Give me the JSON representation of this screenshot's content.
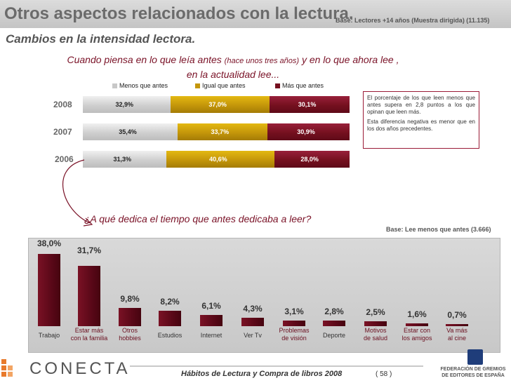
{
  "header": {
    "title": "Otros aspectos relacionados con la lectura.",
    "base_note": "Base: Lectores +14 años (Muestra dirigida) (11.135)"
  },
  "subtitle": "Cambios en la intensidad lectora.",
  "question_1": {
    "part_a": "Cuando piensa en lo que leía antes",
    "part_b": "(hace unos tres años)",
    "part_c": "y en lo que ahora lee ,",
    "part_d": "en la actualidad lee..."
  },
  "note": {
    "paragraph_1": "El porcentaje de los que leen menos que antes supera en 2,8 puntos a los que opinan que leen más.",
    "paragraph_2": "Esta diferencia negativa es menor que en los dos años precedentes."
  },
  "question_2": "¿A qué dedica el tiempo que antes dedicaba a leer?",
  "base_bottom": "Base: Lee menos que antes (3.666)",
  "footer": {
    "brand": "CONECTA",
    "title": "Hábitos de Lectura y Compra de libros 2008",
    "page": "( 58 )",
    "federation_line_1": "FEDERACIÓN DE GREMIOS",
    "federation_line_2": "DE EDITORES DE ESPAÑA"
  },
  "colors": {
    "gray": "#c8c8c8",
    "gold": "#c4960a",
    "red": "#75101f",
    "accent": "#9a1a36"
  },
  "chart_data": [
    {
      "type": "bar",
      "orientation": "horizontal-stacked",
      "categories": [
        "2008",
        "2007",
        "2006"
      ],
      "series": [
        {
          "name": "Menos que antes",
          "values": [
            32.9,
            35.4,
            31.3
          ],
          "labels": [
            "32,9%",
            "35,4%",
            "31,3%"
          ]
        },
        {
          "name": "Igual que antes",
          "values": [
            37.0,
            33.7,
            40.6
          ],
          "labels": [
            "37,0%",
            "33,7%",
            "40,6%"
          ]
        },
        {
          "name": "Más que antes",
          "values": [
            30.1,
            30.9,
            28.0
          ],
          "labels": [
            "30,1%",
            "30,9%",
            "28,0%"
          ]
        }
      ],
      "legend": [
        "Menos que antes",
        "Igual que antes",
        "Más que antes"
      ],
      "xlim": [
        0,
        100
      ]
    },
    {
      "type": "bar",
      "orientation": "vertical",
      "categories": [
        "Trabajo",
        "Estar más con la familia",
        "Otros hobbies",
        "Estudios",
        "Internet",
        "Ver Tv",
        "Problemas de visión",
        "Deporte",
        "Motivos de salud",
        "Estar con los amigos",
        "Va más al cine"
      ],
      "category_lines": [
        [
          "Trabajo"
        ],
        [
          "Estar más",
          "con la familia"
        ],
        [
          "Otros",
          "hobbies"
        ],
        [
          "Estudios"
        ],
        [
          "Internet"
        ],
        [
          "Ver Tv"
        ],
        [
          "Problemas",
          "de visión"
        ],
        [
          "Deporte"
        ],
        [
          "Motivos",
          "de salud"
        ],
        [
          "Estar con",
          "los amigos"
        ],
        [
          "Va más",
          "al cine"
        ]
      ],
      "values": [
        38.0,
        31.7,
        9.8,
        8.2,
        6.1,
        4.3,
        3.1,
        2.8,
        2.5,
        1.6,
        0.7
      ],
      "labels": [
        "38,0%",
        "31,7%",
        "9,8%",
        "8,2%",
        "6,1%",
        "4,3%",
        "3,1%",
        "2,8%",
        "2,5%",
        "1,6%",
        "0,7%"
      ],
      "ylim": [
        0,
        40
      ]
    }
  ]
}
